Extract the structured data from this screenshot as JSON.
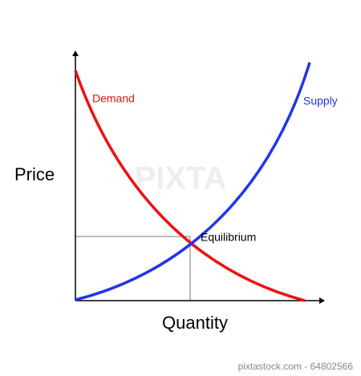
{
  "diagram": {
    "y_axis_label": "Price",
    "x_axis_label": "Quantity",
    "curves": [
      {
        "label": "Demand"
      },
      {
        "label": "Supply"
      }
    ],
    "equilibrium_label": "Equilibrium"
  },
  "watermark": "PIXTA",
  "footer": "pixtastock.com - 64802566"
}
